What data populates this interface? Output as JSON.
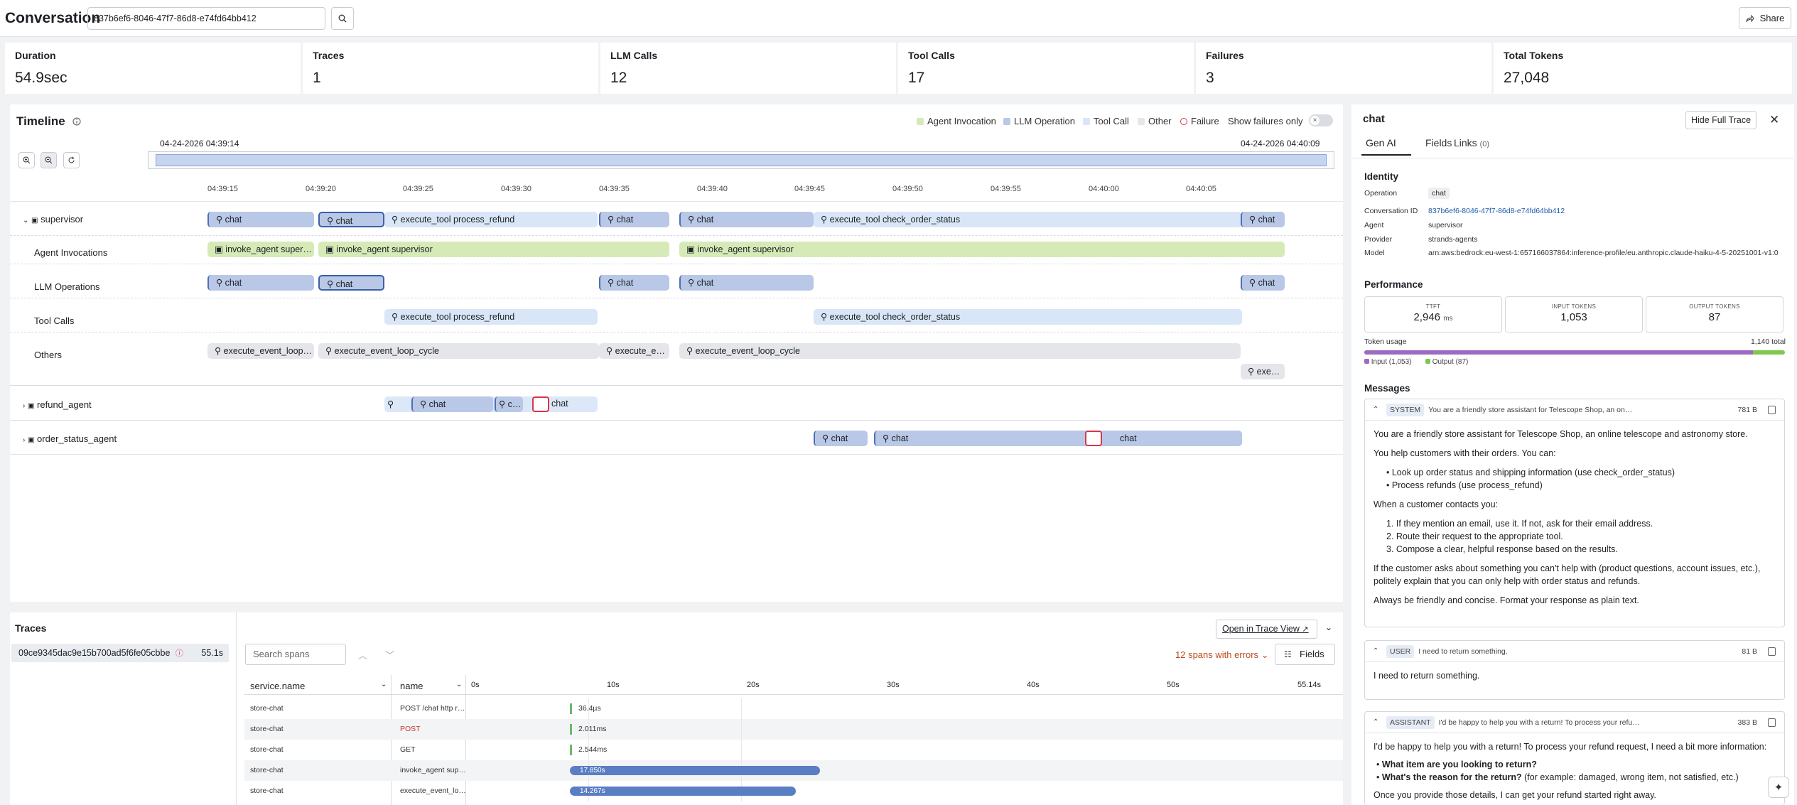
{
  "header": {
    "title": "Conversation",
    "conversation_id": "837b6ef6-8046-47f7-86d8-e74fd64bb412",
    "share": "Share"
  },
  "stats": [
    {
      "label": "Duration",
      "value": "54.9sec"
    },
    {
      "label": "Traces",
      "value": "1"
    },
    {
      "label": "LLM Calls",
      "value": "12"
    },
    {
      "label": "Tool Calls",
      "value": "17"
    },
    {
      "label": "Failures",
      "value": "3"
    },
    {
      "label": "Total Tokens",
      "value": "27,048"
    }
  ],
  "timeline": {
    "title": "Timeline",
    "legend": {
      "agent": "Agent Invocation",
      "llm": "LLM Operation",
      "tool": "Tool Call",
      "other": "Other",
      "failure": "Failure",
      "show_failures": "Show failures only"
    },
    "start": "04-24-2026 04:39:14",
    "end": "04-24-2026 04:40:09",
    "ticks": [
      "04:39:15",
      "04:39:20",
      "04:39:25",
      "04:39:30",
      "04:39:35",
      "04:39:40",
      "04:39:45",
      "04:39:50",
      "04:39:55",
      "04:40:00",
      "04:40:05"
    ],
    "rows": {
      "supervisor": "supervisor",
      "agent_invocations": "Agent Invocations",
      "llm_operations": "LLM Operations",
      "tool_calls": "Tool Calls",
      "others": "Others",
      "refund_agent": "refund_agent",
      "order_status_agent": "order_status_agent"
    },
    "labels": {
      "chat": "chat",
      "tool_refund": "execute_tool process_refund",
      "tool_order": "execute_tool check_order_status",
      "inv_trunc": "invoke_agent super…",
      "inv": "invoke_agent supervisor",
      "loop_trunc": "execute_event_loop…",
      "loop": "execute_event_loop_cycle",
      "exec_e": "execute_e…",
      "exe": "exe…",
      "c_trunc": "c…"
    }
  },
  "detail": {
    "title": "chat",
    "hide": "Hide Full Trace",
    "tabs": {
      "genai": "Gen AI",
      "fields": "Fields",
      "links": "Links",
      "links_count": "(0)"
    },
    "identity": {
      "section": "Identity",
      "operation_k": "Operation",
      "operation_v": "chat",
      "conv_k": "Conversation ID",
      "conv_v": "837b6ef6-8046-47f7-86d8-e74fd64bb412",
      "agent_k": "Agent",
      "agent_v": "supervisor",
      "provider_k": "Provider",
      "provider_v": "strands-agents",
      "model_k": "Model",
      "model_v": "arn:aws:bedrock:eu-west-1:657166037864:inference-profile/eu.anthropic.claude-haiku-4-5-20251001-v1:0"
    },
    "performance": {
      "section": "Performance",
      "ttft_l": "TTFT",
      "ttft_v": "2,946",
      "ttft_u": "ms",
      "in_l": "INPUT TOKENS",
      "in_v": "1,053",
      "out_l": "OUTPUT TOKENS",
      "out_v": "87",
      "usage_l": "Token usage",
      "usage_total": "1,140 total",
      "input_legend": "Input (1,053)",
      "output_legend": "Output (87)",
      "input_fraction": 0.924
    },
    "messages": {
      "section": "Messages",
      "system": {
        "role": "SYSTEM",
        "preview": "You are a friendly store assistant for Telescope Shop, an on…",
        "size": "781 B",
        "p1": "You are a friendly store assistant for Telescope Shop, an online telescope and astronomy store.",
        "p2": "You help customers with their orders. You can:",
        "b1": "Look up order status and shipping information (use check_order_status)",
        "b2": "Process refunds (use process_refund)",
        "p3": "When a customer contacts you:",
        "n1": "If they mention an email, use it. If not, ask for their email address.",
        "n2": "Route their request to the appropriate tool.",
        "n3": "Compose a clear, helpful response based on the results.",
        "p4": "If the customer asks about something you can't help with (product questions, account issues, etc.), politely explain that you can only help with order status and refunds.",
        "p5": "Always be friendly and concise. Format your response as plain text."
      },
      "user": {
        "role": "USER",
        "preview": "I need to return something.",
        "size": "81 B",
        "body": "I need to return something."
      },
      "assistant": {
        "role": "ASSISTANT",
        "preview": "I'd be happy to help you with a return! To process your refu…",
        "size": "383 B",
        "p1": "I'd be happy to help you with a return! To process your refund request, I need a bit more information:",
        "q1": "What item are you looking to return?",
        "q2": "What's the reason for the return?",
        "q2b": "(for example: damaged, wrong item, not satisfied, etc.)",
        "p2": "Once you provide those details, I can get your refund started right away."
      }
    }
  },
  "traces": {
    "title": "Traces",
    "trace_id": "09ce9345dac9e15b700ad5f6fe05cbbe",
    "trace_dur": "55.1s",
    "search_placeholder": "Search spans",
    "open": "Open in Trace View",
    "errors": "12 spans with errors",
    "fields": "Fields",
    "col_service": "service.name",
    "col_name": "name",
    "axis": [
      "0s",
      "10s",
      "20s",
      "30s",
      "40s",
      "50s",
      "55.14s"
    ],
    "rows": [
      {
        "service": "store-chat",
        "name": "POST /chat http r…",
        "dur": "36.4µs",
        "err": false
      },
      {
        "service": "store-chat",
        "name": "POST",
        "dur": "2.011ms",
        "err": true
      },
      {
        "service": "store-chat",
        "name": "GET",
        "dur": "2.544ms",
        "err": false
      },
      {
        "service": "store-chat",
        "name": "invoke_agent sup…",
        "dur": "17.850s",
        "err": false
      },
      {
        "service": "store-chat",
        "name": "execute_event_lo…",
        "dur": "14.267s",
        "err": false
      }
    ]
  },
  "colors": {
    "agent": "#d6eab8",
    "llm": "#b8c8e6",
    "tool": "#d9e6f7",
    "other": "#e4e6ea",
    "failure": "#d8364a",
    "accent": "#5a7ec4"
  }
}
